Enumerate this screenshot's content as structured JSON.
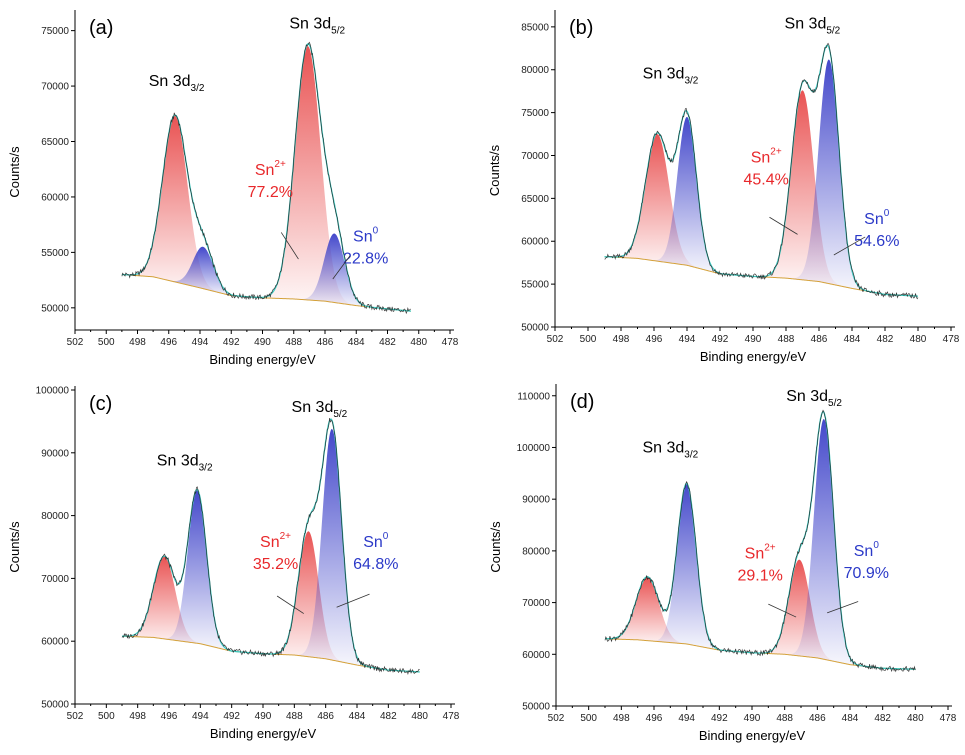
{
  "colors": {
    "sn2": "#e8282b",
    "sn0": "#2b39c8",
    "sn2_fill_top": "#e84a4a",
    "sn0_fill_top": "#3a3fc8",
    "envelope": "#3ec9c0",
    "raw": "#1a1a1a",
    "background": "#d4a13a"
  },
  "chart_data": [
    {
      "type": "area",
      "panel": "(a)",
      "xlabel": "Binding energy/eV",
      "ylabel": "Counts/s",
      "x_reversed": true,
      "xlim": [
        502,
        478
      ],
      "ylim": [
        48000,
        76500
      ],
      "x_ticks": [
        502,
        500,
        498,
        496,
        494,
        492,
        490,
        488,
        486,
        484,
        482,
        480,
        478
      ],
      "y_ticks": [
        50000,
        55000,
        60000,
        65000,
        70000,
        75000
      ],
      "background": {
        "x": [
          499,
          497,
          494,
          492,
          490,
          488,
          486,
          484,
          482,
          480.5
        ],
        "y": [
          53000,
          52800,
          51800,
          51100,
          50900,
          50800,
          50600,
          50200,
          49900,
          49700
        ]
      },
      "series": [
        {
          "kind": "Sn2+",
          "peaks": [
            {
              "center": 495.6,
              "height": 67300,
              "sigma": 0.8
            },
            {
              "center": 487.1,
              "height": 73600,
              "sigma": 0.82
            }
          ]
        },
        {
          "kind": "Sn0",
          "peaks": [
            {
              "center": 493.8,
              "height": 55500,
              "sigma": 0.65
            },
            {
              "center": 485.4,
              "height": 56700,
              "sigma": 0.65
            }
          ]
        }
      ],
      "raw_range": [
        499,
        480.5
      ],
      "peak_labels": [
        {
          "text": "Sn 3d",
          "sub": "3/2",
          "x": 495.5,
          "y": 70000
        },
        {
          "text": "Sn 3d",
          "sub": "5/2",
          "x": 486.5,
          "y": 75200
        }
      ],
      "annotations": {
        "sn2": {
          "label": "Sn",
          "sup": "2+",
          "percent": "77.2%",
          "at": [
            489.5,
            62000
          ],
          "pointer": [
            [
              488.8,
              56800
            ],
            [
              487.7,
              54400
            ]
          ]
        },
        "sn0": {
          "label": "Sn",
          "sup": "0",
          "percent": "22.8%",
          "at": [
            483.4,
            56000
          ],
          "pointer": [
            [
              484.4,
              54700
            ],
            [
              485.5,
              52600
            ]
          ]
        }
      }
    },
    {
      "type": "area",
      "panel": "(b)",
      "xlabel": "Binding energy/eV",
      "ylabel": "Counts/s",
      "x_reversed": true,
      "xlim": [
        502,
        478
      ],
      "ylim": [
        50000,
        86500
      ],
      "x_ticks": [
        502,
        500,
        498,
        496,
        494,
        492,
        490,
        488,
        486,
        484,
        482,
        480,
        478
      ],
      "y_ticks": [
        50000,
        55000,
        60000,
        65000,
        70000,
        75000,
        80000,
        85000
      ],
      "background": {
        "x": [
          499,
          497,
          494,
          492,
          490,
          488,
          486,
          484,
          482,
          480
        ],
        "y": [
          58200,
          58000,
          57200,
          56200,
          55900,
          55700,
          55300,
          54500,
          53800,
          53600
        ]
      },
      "series": [
        {
          "kind": "Sn2+",
          "peaks": [
            {
              "center": 495.8,
              "height": 72500,
              "sigma": 0.72
            },
            {
              "center": 487.0,
              "height": 77600,
              "sigma": 0.68
            }
          ]
        },
        {
          "kind": "Sn0",
          "peaks": [
            {
              "center": 494.0,
              "height": 74500,
              "sigma": 0.58
            },
            {
              "center": 485.4,
              "height": 81200,
              "sigma": 0.62
            }
          ]
        }
      ],
      "raw_range": [
        499,
        480
      ],
      "peak_labels": [
        {
          "text": "Sn 3d",
          "sub": "3/2",
          "x": 495.0,
          "y": 79000
        },
        {
          "text": "Sn 3d",
          "sub": "5/2",
          "x": 486.4,
          "y": 84800
        }
      ],
      "annotations": {
        "sn2": {
          "label": "Sn",
          "sup": "2+",
          "percent": "45.4%",
          "at": [
            489.2,
            69200
          ],
          "pointer": [
            [
              489.0,
              62800
            ],
            [
              487.3,
              60800
            ]
          ]
        },
        "sn0": {
          "label": "Sn",
          "sup": "0",
          "percent": "54.6%",
          "at": [
            482.5,
            62000
          ],
          "pointer": [
            [
              483.2,
              60500
            ],
            [
              485.1,
              58400
            ]
          ]
        }
      }
    },
    {
      "type": "area",
      "panel": "(c)",
      "xlabel": "Binding energy/eV",
      "ylabel": "Counts/s",
      "x_reversed": true,
      "xlim": [
        502,
        478
      ],
      "ylim": [
        50000,
        100000
      ],
      "x_ticks": [
        502,
        500,
        498,
        496,
        494,
        492,
        490,
        488,
        486,
        484,
        482,
        480,
        478
      ],
      "y_ticks": [
        50000,
        60000,
        70000,
        80000,
        90000,
        100000
      ],
      "background": {
        "x": [
          499,
          497,
          494,
          492,
          490,
          488,
          486,
          484,
          482,
          480
        ],
        "y": [
          60800,
          60600,
          59600,
          58400,
          58000,
          57800,
          57200,
          56200,
          55400,
          55100
        ]
      },
      "series": [
        {
          "kind": "Sn2+",
          "peaks": [
            {
              "center": 496.3,
              "height": 73500,
              "sigma": 0.7
            },
            {
              "center": 487.1,
              "height": 77500,
              "sigma": 0.65
            }
          ]
        },
        {
          "kind": "Sn0",
          "peaks": [
            {
              "center": 494.2,
              "height": 84000,
              "sigma": 0.6
            },
            {
              "center": 485.6,
              "height": 93800,
              "sigma": 0.62
            }
          ]
        }
      ],
      "raw_range": [
        499,
        480
      ],
      "peak_labels": [
        {
          "text": "Sn 3d",
          "sub": "3/2",
          "x": 495.0,
          "y": 88000
        },
        {
          "text": "Sn 3d",
          "sub": "5/2",
          "x": 486.4,
          "y": 96500
        }
      ],
      "annotations": {
        "sn2": {
          "label": "Sn",
          "sup": "2+",
          "percent": "35.2%",
          "at": [
            489.2,
            75000
          ],
          "pointer": [
            [
              489.1,
              67200
            ],
            [
              487.4,
              64400
            ]
          ]
        },
        "sn0": {
          "label": "Sn",
          "sup": "0",
          "percent": "64.8%",
          "at": [
            482.8,
            75000
          ],
          "pointer": [
            [
              483.2,
              67500
            ],
            [
              485.3,
              65400
            ]
          ]
        }
      }
    },
    {
      "type": "area",
      "panel": "(d)",
      "xlabel": "Binding energy/eV",
      "ylabel": "Counts/s",
      "x_reversed": true,
      "xlim": [
        502,
        478
      ],
      "ylim": [
        50000,
        111500
      ],
      "x_ticks": [
        502,
        500,
        498,
        496,
        494,
        492,
        490,
        488,
        486,
        484,
        482,
        480,
        478
      ],
      "y_ticks": [
        50000,
        60000,
        70000,
        80000,
        90000,
        100000,
        110000
      ],
      "background": {
        "x": [
          499,
          497,
          494,
          492,
          490,
          488,
          486,
          484,
          482,
          480
        ],
        "y": [
          63000,
          62800,
          62000,
          60800,
          60300,
          60000,
          59300,
          58000,
          57300,
          57100
        ]
      },
      "series": [
        {
          "kind": "Sn2+",
          "peaks": [
            {
              "center": 496.4,
              "height": 75000,
              "sigma": 0.7
            },
            {
              "center": 487.1,
              "height": 78300,
              "sigma": 0.65
            }
          ]
        },
        {
          "kind": "Sn0",
          "peaks": [
            {
              "center": 494.0,
              "height": 93000,
              "sigma": 0.58
            },
            {
              "center": 485.6,
              "height": 105500,
              "sigma": 0.6
            }
          ]
        }
      ],
      "raw_range": [
        499,
        480
      ],
      "peak_labels": [
        {
          "text": "Sn 3d",
          "sub": "3/2",
          "x": 495.0,
          "y": 99000
        },
        {
          "text": "Sn 3d",
          "sub": "5/2",
          "x": 486.2,
          "y": 109000
        }
      ],
      "annotations": {
        "sn2": {
          "label": "Sn",
          "sup": "2+",
          "percent": "29.1%",
          "at": [
            489.5,
            78500
          ],
          "pointer": [
            [
              489.0,
              69700
            ],
            [
              487.3,
              67200
            ]
          ]
        },
        "sn0": {
          "label": "Sn",
          "sup": "0",
          "percent": "70.9%",
          "at": [
            483.0,
            79000
          ],
          "pointer": [
            [
              483.5,
              70200
            ],
            [
              485.4,
              68000
            ]
          ]
        }
      }
    }
  ]
}
